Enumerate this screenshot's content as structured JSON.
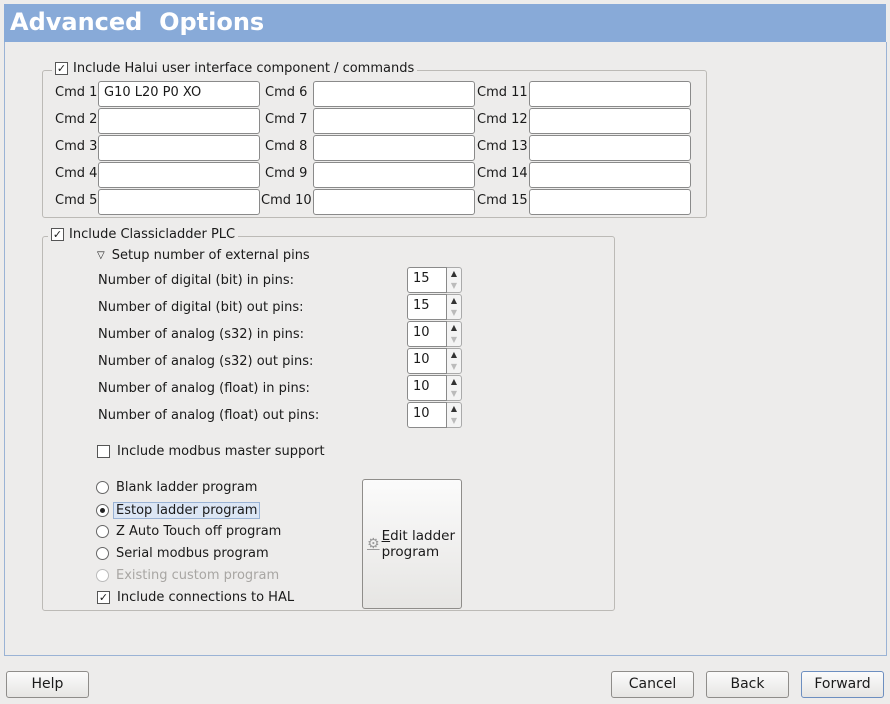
{
  "title": "Advanced  Options",
  "halui": {
    "label": "Include Halui user interface component / commands",
    "checked": true,
    "cmds": [
      {
        "label": "Cmd 1",
        "value": "G10 L20 P0 XO"
      },
      {
        "label": "Cmd 2",
        "value": ""
      },
      {
        "label": "Cmd 3",
        "value": ""
      },
      {
        "label": "Cmd 4",
        "value": ""
      },
      {
        "label": "Cmd 5",
        "value": ""
      },
      {
        "label": "Cmd 6",
        "value": ""
      },
      {
        "label": "Cmd 7",
        "value": ""
      },
      {
        "label": "Cmd 8",
        "value": ""
      },
      {
        "label": "Cmd 9",
        "value": ""
      },
      {
        "label": "Cmd 10",
        "value": ""
      },
      {
        "label": "Cmd 11",
        "value": ""
      },
      {
        "label": "Cmd 12",
        "value": ""
      },
      {
        "label": "Cmd 13",
        "value": ""
      },
      {
        "label": "Cmd 14",
        "value": ""
      },
      {
        "label": "Cmd 15",
        "value": ""
      }
    ]
  },
  "classicladder": {
    "label": "Include Classicladder PLC",
    "checked": true,
    "expander": "Setup number of external pins",
    "pins": [
      {
        "label": "Number of digital (bit) in pins:",
        "value": "15"
      },
      {
        "label": "Number of digital (bit) out pins:",
        "value": "15"
      },
      {
        "label": "Number of analog (s32) in pins:",
        "value": "10"
      },
      {
        "label": "Number of analog (s32) out pins:",
        "value": "10"
      },
      {
        "label": "Number of analog (float) in pins:",
        "value": "10"
      },
      {
        "label": "Number of analog (float) out pins:",
        "value": "10"
      }
    ],
    "modbus": {
      "label": "Include modbus master support",
      "checked": false
    },
    "programs": [
      {
        "label": "Blank ladder program",
        "selected": false
      },
      {
        "label": "Estop ladder program",
        "selected": true
      },
      {
        "label": "Z Auto Touch off program",
        "selected": false
      },
      {
        "label": "Serial modbus program",
        "selected": false
      },
      {
        "label": "Existing custom program",
        "selected": false,
        "disabled": true
      }
    ],
    "hal": {
      "label": "Include connections to HAL",
      "checked": true
    },
    "edit_button": "Edit ladder program"
  },
  "buttons": {
    "help": "Help",
    "cancel": "Cancel",
    "back": "Back",
    "forward": "Forward"
  },
  "colors": {
    "header": "#88aad8",
    "background": "#edeceb"
  }
}
